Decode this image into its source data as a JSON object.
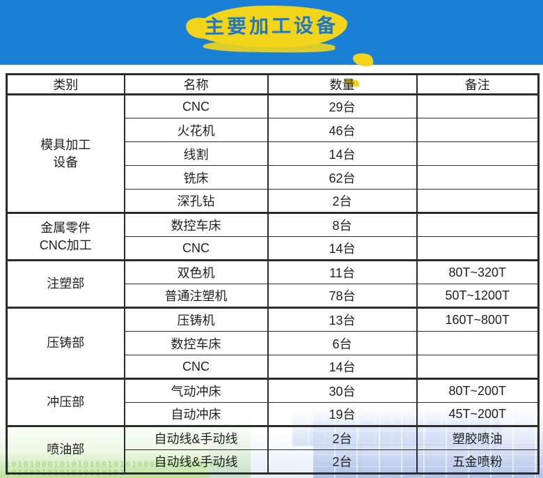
{
  "header": {
    "title": "主要加工设备",
    "banner_color": "#1a80d6",
    "badge_color": "#f2d41a",
    "title_color": "#1e78c8"
  },
  "table": {
    "columns": [
      "类别",
      "名称",
      "数量",
      "备注"
    ],
    "groups": [
      {
        "category": [
          "模具加工",
          "设备"
        ],
        "rows": [
          [
            "CNC",
            "29台",
            ""
          ],
          [
            "火花机",
            "46台",
            ""
          ],
          [
            "线割",
            "14台",
            ""
          ],
          [
            "铣床",
            "62台",
            ""
          ],
          [
            "深孔钻",
            "2台",
            ""
          ]
        ]
      },
      {
        "category": [
          "金属零件",
          "CNC加工"
        ],
        "rows": [
          [
            "数控车床",
            "8台",
            ""
          ],
          [
            "CNC",
            "14台",
            ""
          ]
        ]
      },
      {
        "category": [
          "注塑部"
        ],
        "rows": [
          [
            "双色机",
            "11台",
            "80T~320T"
          ],
          [
            "普通注塑机",
            "78台",
            "50T~1200T"
          ]
        ]
      },
      {
        "category": [
          "压铸部"
        ],
        "rows": [
          [
            "压铸机",
            "13台",
            "160T~800T"
          ],
          [
            "数控车床",
            "6台",
            ""
          ],
          [
            "CNC",
            "14台",
            ""
          ]
        ]
      },
      {
        "category": [
          "冲压部"
        ],
        "rows": [
          [
            "气动冲床",
            "30台",
            "80T~200T"
          ],
          [
            "自动冲床",
            "19台",
            "45T~200T"
          ]
        ]
      },
      {
        "category": [
          "喷油部"
        ],
        "rows": [
          [
            "自动线&手动线",
            "2台",
            "塑胶喷油"
          ],
          [
            "自动线&手动线",
            "2台",
            "五金喷粉"
          ]
        ]
      }
    ]
  },
  "watermark": {
    "binary_text": "1010100010101010010101000101010101001010100010101010010101"
  }
}
